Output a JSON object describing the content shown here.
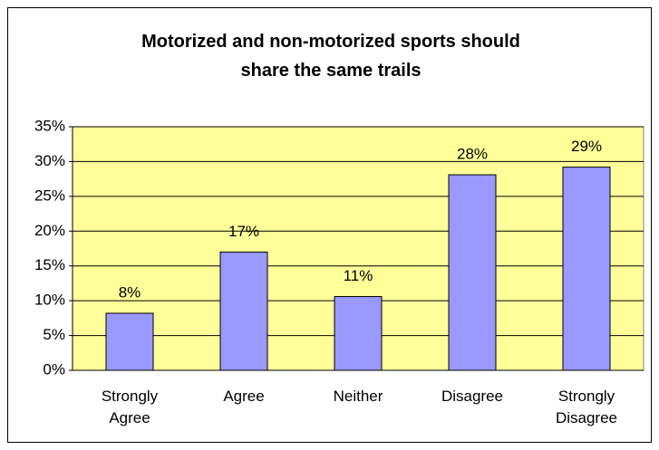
{
  "chart_data": {
    "type": "bar",
    "title": "Motorized and non-motorized sports should share the same trails",
    "categories": [
      "Strongly Agree",
      "Agree",
      "Neither",
      "Disagree",
      "Strongly Disagree"
    ],
    "values": [
      8.2,
      17,
      10.6,
      28.1,
      29.2
    ],
    "value_labels": [
      "8%",
      "17%",
      "11%",
      "28%",
      "29%"
    ],
    "color": "#9999ff",
    "ylim": [
      0,
      35
    ],
    "yticks": [
      {
        "value": 0,
        "label": "0%"
      },
      {
        "value": 5,
        "label": "5%"
      },
      {
        "value": 10,
        "label": "10%"
      },
      {
        "value": 15,
        "label": "15%"
      },
      {
        "value": 20,
        "label": "20%"
      },
      {
        "value": 25,
        "label": "25%"
      },
      {
        "value": 30,
        "label": "30%"
      },
      {
        "value": 35,
        "label": "35%"
      }
    ],
    "grid": true
  }
}
